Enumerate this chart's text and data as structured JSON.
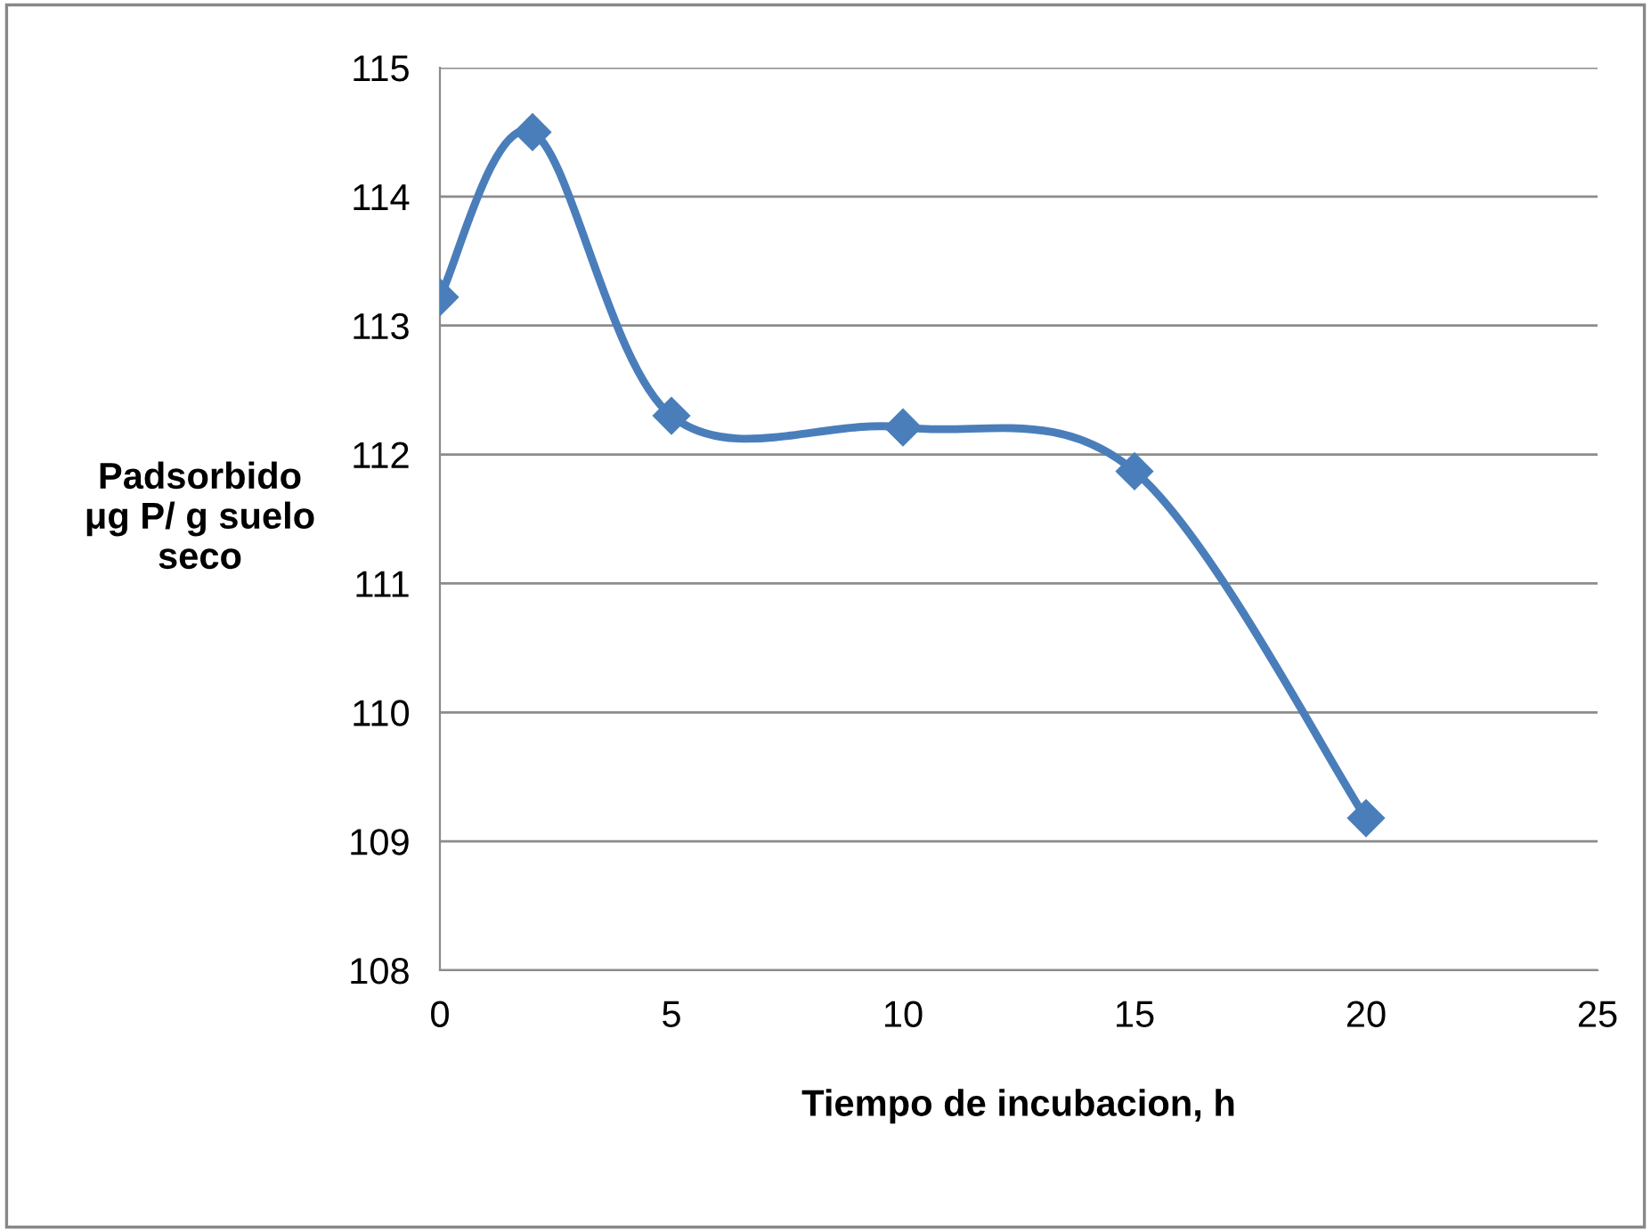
{
  "chart_data": {
    "type": "line",
    "xlabel": "Tiempo de incubacion, h",
    "ylabel": "Padsorbido\nμg P/ g suelo\nseco",
    "x": [
      0,
      2,
      5,
      10,
      15,
      20
    ],
    "series": [
      {
        "color": "#4a7ebb",
        "values": [
          113.22,
          114.5,
          112.3,
          112.21,
          111.87,
          109.18
        ]
      }
    ],
    "xlim": [
      0,
      25
    ],
    "xticks": [
      0,
      5,
      10,
      15,
      20,
      25
    ],
    "ylim": [
      108,
      115
    ],
    "yticks": [
      108,
      109,
      110,
      111,
      112,
      113,
      114,
      115
    ],
    "grid": "y",
    "marker": "diamond",
    "line_style": "solid",
    "legend": false
  }
}
